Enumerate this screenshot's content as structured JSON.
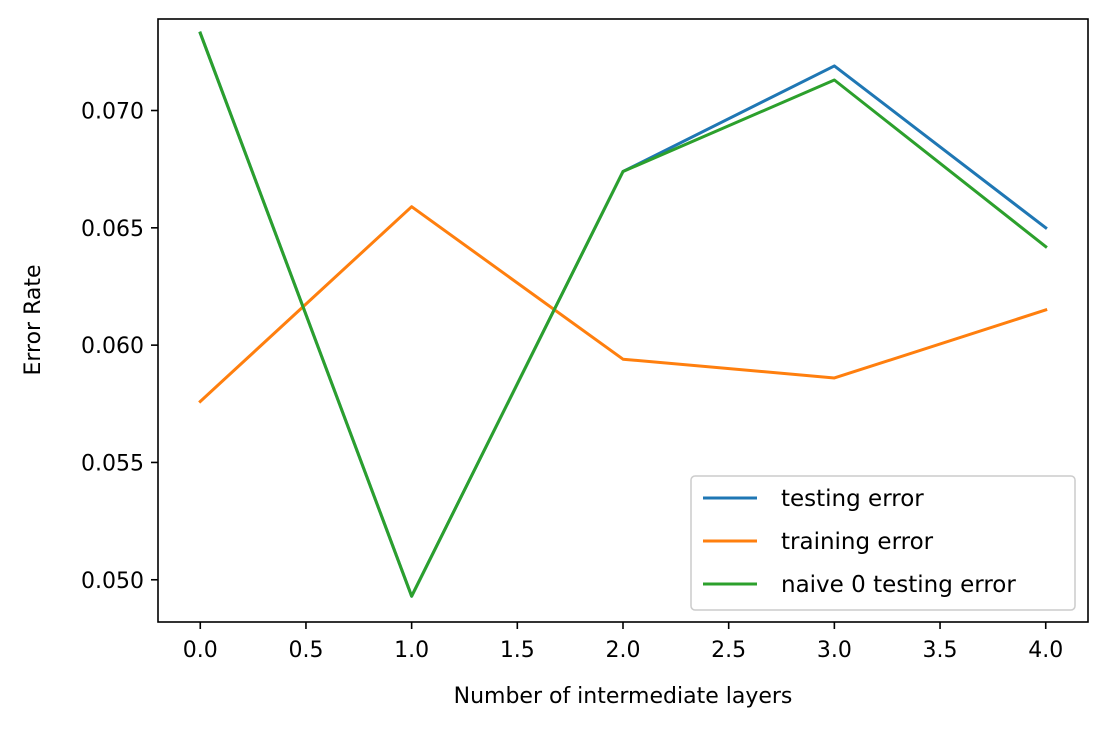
{
  "chart_data": {
    "type": "line",
    "title": "",
    "xlabel": "Number of intermediate layers",
    "ylabel": "Error Rate",
    "x": [
      0.0,
      1.0,
      2.0,
      3.0,
      4.0
    ],
    "xlim": [
      -0.2,
      4.2
    ],
    "ylim": [
      0.0482,
      0.0739
    ],
    "x_ticks": [
      0.0,
      0.5,
      1.0,
      1.5,
      2.0,
      2.5,
      3.0,
      3.5,
      4.0
    ],
    "x_tick_labels": [
      "0.0",
      "0.5",
      "1.0",
      "1.5",
      "2.0",
      "2.5",
      "3.0",
      "3.5",
      "4.0"
    ],
    "y_ticks": [
      0.05,
      0.055,
      0.06,
      0.065,
      0.07
    ],
    "y_tick_labels": [
      "0.050",
      "0.055",
      "0.060",
      "0.065",
      "0.070"
    ],
    "grid": false,
    "legend_position": "lower-right",
    "series": [
      {
        "name": "testing error",
        "color": "#1f77b4",
        "values": [
          0.0733,
          0.0493,
          0.0674,
          0.0719,
          0.065
        ]
      },
      {
        "name": "training error",
        "color": "#ff7f0e",
        "values": [
          0.0576,
          0.0659,
          0.0594,
          0.0586,
          0.0615
        ]
      },
      {
        "name": "naive 0 testing error",
        "color": "#2ca02c",
        "values": [
          0.0733,
          0.0493,
          0.0674,
          0.0713,
          0.0642
        ]
      }
    ]
  }
}
